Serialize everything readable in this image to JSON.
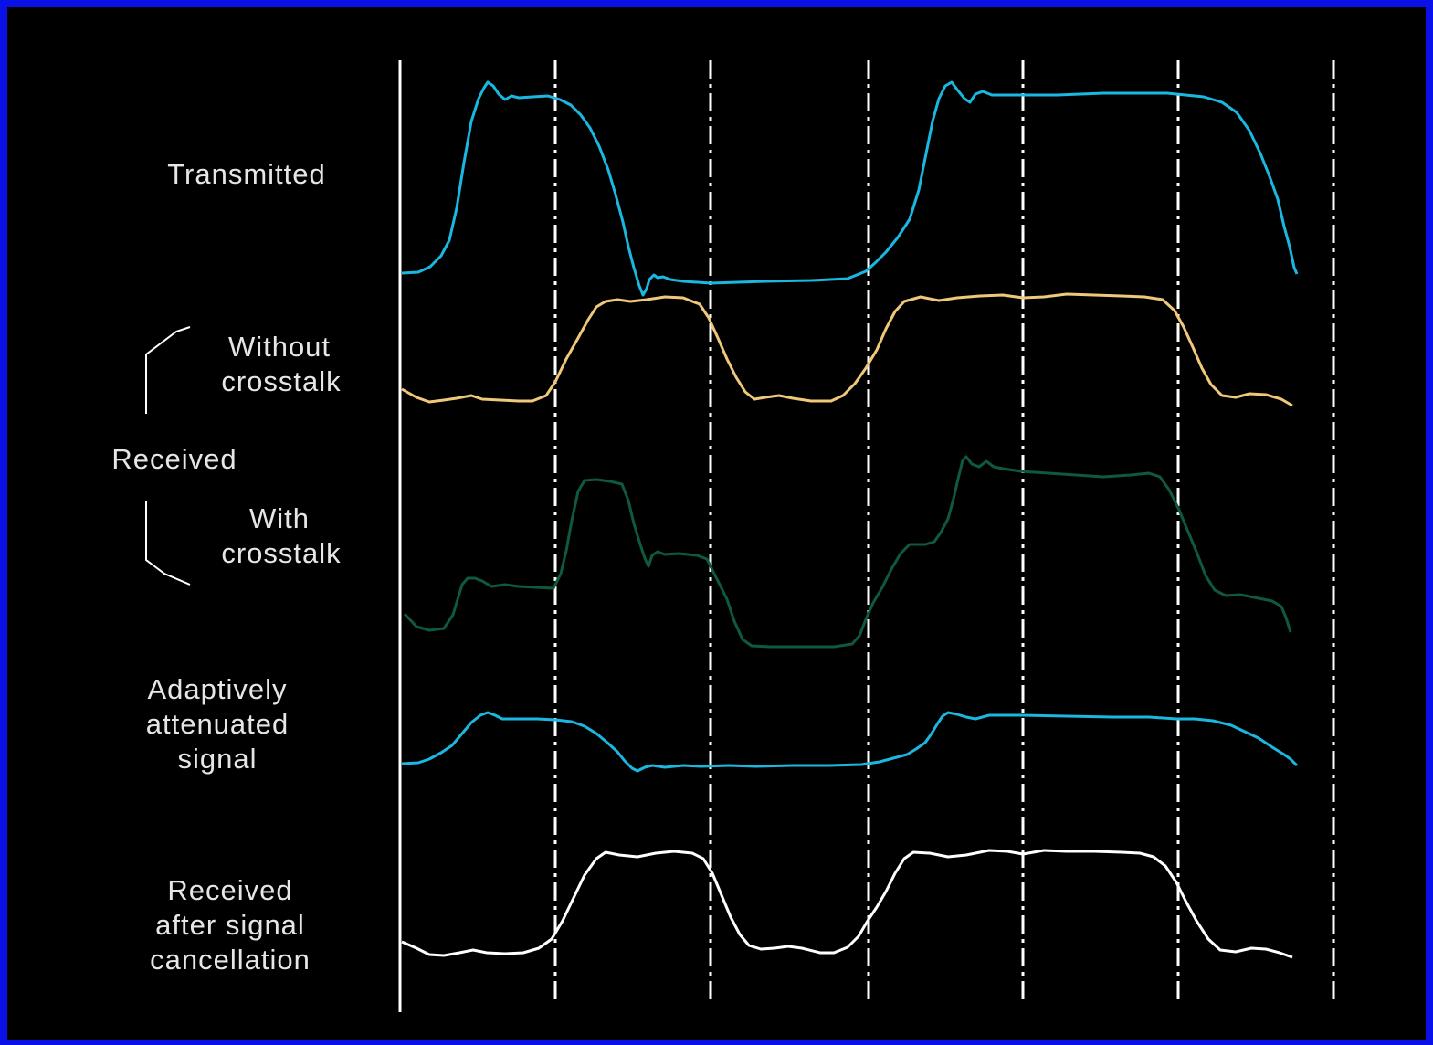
{
  "labels": {
    "transmitted": "Transmitted",
    "without": [
      "Without",
      "crosstalk"
    ],
    "received": "Received",
    "with": [
      "With",
      "crosstalk"
    ],
    "attenuated": [
      "Adaptively",
      "attenuated",
      "signal"
    ],
    "after": [
      "Received",
      "after signal",
      "cancellation"
    ]
  },
  "colors": {
    "background_border": "#0a10e8",
    "panel": "#000000",
    "transmitted": "#1ab8e0",
    "without_crosstalk": "#f0c87a",
    "with_crosstalk": "#0f5a3c",
    "attenuated": "#1ab8e0",
    "after_cancellation": "#ffffff",
    "text": "#e6e6e6",
    "gridlines": "#ffffff"
  },
  "timing": {
    "solid_line": "time-origin",
    "dashed_dot_lines": 6
  },
  "bit_pattern": [
    0,
    1,
    0,
    0,
    1,
    1
  ]
}
